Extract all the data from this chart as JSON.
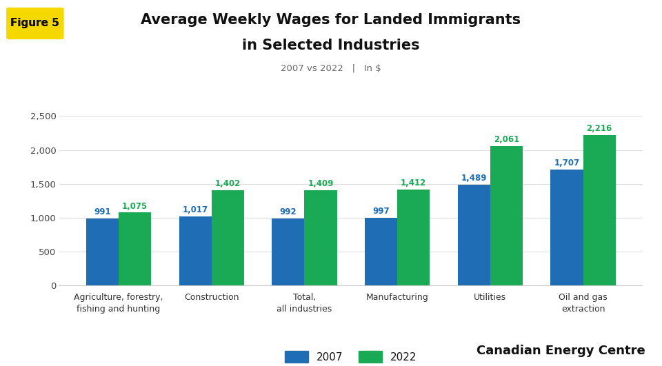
{
  "title_line1": "Average Weekly Wages for Landed Immigrants",
  "title_line2": "in Selected Industries",
  "subtitle": "2007 vs 2022   |   In $",
  "figure_label": "Figure 5",
  "categories": [
    "Agriculture, forestry,\nfishing and hunting",
    "Construction",
    "Total,\nall industries",
    "Manufacturing",
    "Utilities",
    "Oil and gas\nextraction"
  ],
  "values_2007": [
    991,
    1017,
    992,
    997,
    1489,
    1707
  ],
  "values_2022": [
    1075,
    1402,
    1409,
    1412,
    2061,
    2216
  ],
  "color_2007": "#1f6eb5",
  "color_2022": "#1aaa55",
  "ylim": [
    0,
    2700
  ],
  "yticks": [
    0,
    500,
    1000,
    1500,
    2000,
    2500
  ],
  "background_color": "#ffffff",
  "figure_label_bg": "#f5d800",
  "bar_width": 0.35,
  "watermark": "Canadian Energy Centre"
}
